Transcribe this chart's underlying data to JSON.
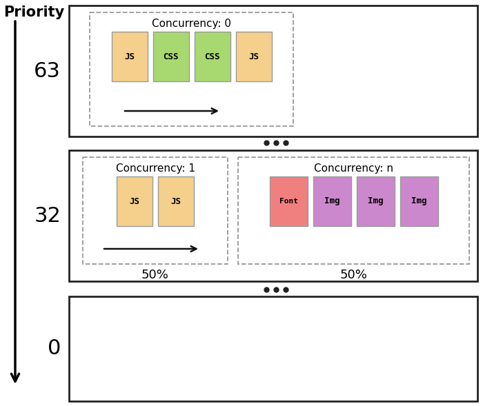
{
  "bg_color": "#ffffff",
  "box_edge_color": "#222222",
  "dashed_edge_color": "#999999",
  "dots_color": "#222222",
  "arrow_color": "#111111",
  "box1": {
    "label": "Concurrency: 0",
    "items": [
      {
        "text": "JS",
        "color": "#f5d08c"
      },
      {
        "text": "CSS",
        "color": "#a8d870"
      },
      {
        "text": "CSS",
        "color": "#a8d870"
      },
      {
        "text": "JS",
        "color": "#f5d08c"
      }
    ]
  },
  "box2_left": {
    "label": "Concurrency: 1",
    "pct": "50%",
    "items": [
      {
        "text": "JS",
        "color": "#f5d08c"
      },
      {
        "text": "JS",
        "color": "#f5d08c"
      }
    ]
  },
  "box2_right": {
    "label": "Concurrency: n",
    "pct": "50%",
    "items": [
      {
        "text": "Font",
        "color": "#f08080"
      },
      {
        "text": "Img",
        "color": "#cc88cc"
      },
      {
        "text": "Img",
        "color": "#cc88cc"
      },
      {
        "text": "Img",
        "color": "#cc88cc"
      }
    ]
  },
  "item_border_color": "#999999",
  "item_text_font": "monospace",
  "item_text_size": 9,
  "label_font_size": 11,
  "priority_font_size": 22,
  "pct_font_size": 13,
  "priority_label_font_size": 15
}
